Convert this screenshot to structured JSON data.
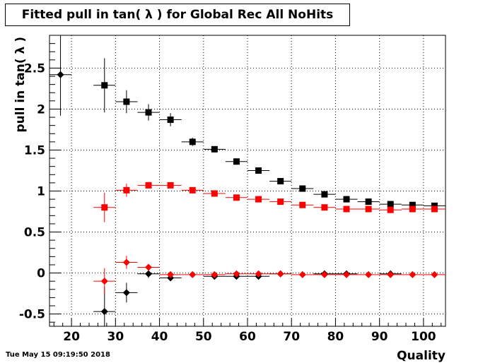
{
  "title": "Fitted pull in tan( λ ) for Global Rec All NoHits",
  "timestamp": "Tue May 15 09:19:50 2018",
  "chart_data": {
    "type": "scatter",
    "title": "Fitted pull in tan( λ ) for Global Rec All NoHits",
    "xlabel": "Quality",
    "ylabel": "pull in tan( λ )",
    "xlim": [
      15,
      105
    ],
    "ylim": [
      -0.65,
      2.9
    ],
    "grid": true,
    "x_ticks": [
      20,
      30,
      40,
      50,
      60,
      70,
      80,
      90,
      100
    ],
    "y_ticks": [
      -0.5,
      0,
      0.5,
      1,
      1.5,
      2,
      2.5
    ],
    "y_tick_labels": [
      "-0.5",
      "0",
      "0.5",
      "1",
      "1.5",
      "2",
      "2.5"
    ],
    "series": [
      {
        "color": "#000000",
        "marker": "square",
        "points": [
          {
            "x": 27.5,
            "y": 2.29,
            "ex": 2.5,
            "ey": 0.33
          },
          {
            "x": 32.5,
            "y": 2.09,
            "ex": 2.5,
            "ey": 0.14
          },
          {
            "x": 37.5,
            "y": 1.96,
            "ex": 2.5,
            "ey": 0.1
          },
          {
            "x": 42.5,
            "y": 1.87,
            "ex": 2.5,
            "ey": 0.08
          },
          {
            "x": 47.5,
            "y": 1.6,
            "ex": 2.5,
            "ey": 0.05
          },
          {
            "x": 52.5,
            "y": 1.51,
            "ex": 2.5,
            "ey": 0.03
          },
          {
            "x": 57.5,
            "y": 1.36,
            "ex": 2.5,
            "ey": 0.02
          },
          {
            "x": 62.5,
            "y": 1.25,
            "ex": 2.5,
            "ey": 0.02
          },
          {
            "x": 67.5,
            "y": 1.12,
            "ex": 2.5,
            "ey": 0.02
          },
          {
            "x": 72.5,
            "y": 1.03,
            "ex": 2.5,
            "ey": 0.02
          },
          {
            "x": 77.5,
            "y": 0.96,
            "ex": 2.5,
            "ey": 0.02
          },
          {
            "x": 82.5,
            "y": 0.9,
            "ex": 2.5,
            "ey": 0.02
          },
          {
            "x": 87.5,
            "y": 0.87,
            "ex": 2.5,
            "ey": 0.02
          },
          {
            "x": 92.5,
            "y": 0.84,
            "ex": 2.5,
            "ey": 0.02
          },
          {
            "x": 97.5,
            "y": 0.83,
            "ex": 2.5,
            "ey": 0.02
          },
          {
            "x": 102.5,
            "y": 0.82,
            "ex": 2.5,
            "ey": 0.02
          }
        ]
      },
      {
        "color": "#ff0000",
        "marker": "square",
        "points": [
          {
            "x": 27.5,
            "y": 0.8,
            "ex": 2.5,
            "ey": 0.18
          },
          {
            "x": 32.5,
            "y": 1.01,
            "ex": 2.5,
            "ey": 0.08
          },
          {
            "x": 37.5,
            "y": 1.07,
            "ex": 2.5,
            "ey": 0.04
          },
          {
            "x": 42.5,
            "y": 1.07,
            "ex": 2.5,
            "ey": 0.03
          },
          {
            "x": 47.5,
            "y": 1.01,
            "ex": 2.5,
            "ey": 0.02
          },
          {
            "x": 52.5,
            "y": 0.97,
            "ex": 2.5,
            "ey": 0.02
          },
          {
            "x": 57.5,
            "y": 0.92,
            "ex": 2.5,
            "ey": 0.02
          },
          {
            "x": 62.5,
            "y": 0.9,
            "ex": 2.5,
            "ey": 0.02
          },
          {
            "x": 67.5,
            "y": 0.87,
            "ex": 2.5,
            "ey": 0.02
          },
          {
            "x": 72.5,
            "y": 0.83,
            "ex": 2.5,
            "ey": 0.02
          },
          {
            "x": 77.5,
            "y": 0.8,
            "ex": 2.5,
            "ey": 0.02
          },
          {
            "x": 82.5,
            "y": 0.78,
            "ex": 2.5,
            "ey": 0.02
          },
          {
            "x": 87.5,
            "y": 0.78,
            "ex": 2.5,
            "ey": 0.02
          },
          {
            "x": 92.5,
            "y": 0.77,
            "ex": 2.5,
            "ey": 0.02
          },
          {
            "x": 97.5,
            "y": 0.78,
            "ex": 2.5,
            "ey": 0.02
          },
          {
            "x": 102.5,
            "y": 0.78,
            "ex": 2.5,
            "ey": 0.02
          }
        ]
      },
      {
        "color": "#000000",
        "marker": "diamond",
        "points": [
          {
            "x": 17.5,
            "y": 2.42,
            "ex": 2.5,
            "ey": 0.5
          },
          {
            "x": 27.5,
            "y": -0.47,
            "ex": 2.5,
            "ey": 0.3
          },
          {
            "x": 32.5,
            "y": -0.24,
            "ex": 2.5,
            "ey": 0.12
          },
          {
            "x": 37.5,
            "y": -0.01,
            "ex": 2.5,
            "ey": 0.05
          },
          {
            "x": 42.5,
            "y": -0.06,
            "ex": 2.5,
            "ey": 0.03
          },
          {
            "x": 52.5,
            "y": -0.04,
            "ex": 2.5,
            "ey": 0.02
          },
          {
            "x": 57.5,
            "y": -0.04,
            "ex": 2.5,
            "ey": 0.02
          },
          {
            "x": 62.5,
            "y": -0.04,
            "ex": 2.5,
            "ey": 0.02
          },
          {
            "x": 67.5,
            "y": -0.01,
            "ex": 2.5,
            "ey": 0.02
          },
          {
            "x": 77.5,
            "y": -0.01,
            "ex": 2.5,
            "ey": 0.02
          },
          {
            "x": 82.5,
            "y": -0.01,
            "ex": 2.5,
            "ey": 0.02
          },
          {
            "x": 92.5,
            "y": -0.01,
            "ex": 2.5,
            "ey": 0.02
          }
        ]
      },
      {
        "color": "#ff0000",
        "marker": "diamond",
        "points": [
          {
            "x": 27.5,
            "y": -0.1,
            "ex": 2.5,
            "ey": 0.16
          },
          {
            "x": 32.5,
            "y": 0.13,
            "ex": 2.5,
            "ey": 0.08
          },
          {
            "x": 37.5,
            "y": 0.07,
            "ex": 2.5,
            "ey": 0.04
          },
          {
            "x": 42.5,
            "y": -0.02,
            "ex": 2.5,
            "ey": 0.02
          },
          {
            "x": 47.5,
            "y": -0.02,
            "ex": 2.5,
            "ey": 0.02
          },
          {
            "x": 52.5,
            "y": -0.02,
            "ex": 2.5,
            "ey": 0.02
          },
          {
            "x": 57.5,
            "y": -0.01,
            "ex": 2.5,
            "ey": 0.02
          },
          {
            "x": 62.5,
            "y": -0.01,
            "ex": 2.5,
            "ey": 0.02
          },
          {
            "x": 67.5,
            "y": -0.01,
            "ex": 2.5,
            "ey": 0.02
          },
          {
            "x": 72.5,
            "y": -0.02,
            "ex": 2.5,
            "ey": 0.02
          },
          {
            "x": 77.5,
            "y": -0.02,
            "ex": 2.5,
            "ey": 0.02
          },
          {
            "x": 82.5,
            "y": -0.02,
            "ex": 2.5,
            "ey": 0.02
          },
          {
            "x": 87.5,
            "y": -0.02,
            "ex": 2.5,
            "ey": 0.02
          },
          {
            "x": 92.5,
            "y": -0.02,
            "ex": 2.5,
            "ey": 0.02
          },
          {
            "x": 97.5,
            "y": -0.02,
            "ex": 2.5,
            "ey": 0.02
          },
          {
            "x": 102.5,
            "y": -0.02,
            "ex": 2.5,
            "ey": 0.02
          }
        ]
      }
    ]
  }
}
